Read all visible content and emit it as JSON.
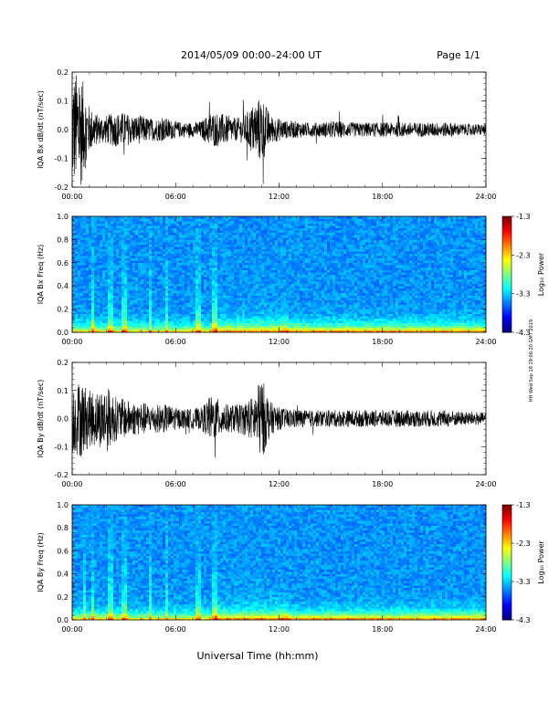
{
  "header": {
    "title": "2014/05/09  00:00–24:00 UT",
    "page": "Page 1/1"
  },
  "footer": {
    "xlabel": "Universal Time (hh:mm)",
    "side_stamp": "HH Wed Sep 18 19:06:20 GMT 2019"
  },
  "colorbar": {
    "label": "Log₁₀ Power",
    "ticks": [
      "-1.3",
      "-2.3",
      "-3.3",
      "-4.3"
    ]
  },
  "chart_data": [
    {
      "type": "line",
      "ylabel": "IQA Bx dB/dt (nT/sec)",
      "xlim": [
        0,
        24
      ],
      "ylim": [
        -0.2,
        0.2
      ],
      "xticks": [
        "00:00",
        "06:00",
        "12:00",
        "18:00",
        "24:00"
      ],
      "yticks": [
        "0.2",
        "0.1",
        "0.0",
        "-0.1",
        "-0.2"
      ],
      "envelope": {
        "hours": [
          0,
          0.5,
          1,
          1.5,
          2,
          2.5,
          3,
          3.5,
          4,
          4.5,
          5,
          5.5,
          6,
          6.5,
          7,
          7.5,
          8,
          8.5,
          9,
          9.5,
          10,
          10.5,
          11,
          11.5,
          12,
          12.5,
          13,
          13.5,
          14,
          14.5,
          15,
          15.5,
          16,
          16.5,
          17,
          17.5,
          18,
          18.5,
          19,
          19.5,
          20,
          20.5,
          21,
          21.5,
          22,
          22.5,
          23,
          23.5,
          24
        ],
        "amplitude": [
          0.2,
          0.2,
          0.08,
          0.05,
          0.05,
          0.06,
          0.06,
          0.05,
          0.05,
          0.04,
          0.04,
          0.04,
          0.03,
          0.025,
          0.025,
          0.03,
          0.06,
          0.06,
          0.05,
          0.04,
          0.05,
          0.09,
          0.12,
          0.05,
          0.04,
          0.03,
          0.03,
          0.025,
          0.025,
          0.025,
          0.03,
          0.03,
          0.025,
          0.025,
          0.025,
          0.025,
          0.025,
          0.025,
          0.025,
          0.025,
          0.025,
          0.025,
          0.025,
          0.025,
          0.025,
          0.02,
          0.02,
          0.02,
          0.02
        ]
      }
    },
    {
      "type": "heatmap",
      "ylabel": "IQA Bx Freq (Hz)",
      "xlim": [
        0,
        24
      ],
      "ylim": [
        0.0,
        1.0
      ],
      "xticks": [
        "00:00",
        "06:00",
        "12:00",
        "18:00",
        "24:00"
      ],
      "yticks": [
        "1.0",
        "0.8",
        "0.6",
        "0.4",
        "0.2",
        "0.0"
      ],
      "zlim": [
        -4.3,
        -1.3
      ],
      "features": {
        "broadband_lines_hours": [
          1.2,
          2.2,
          3.0,
          4.5,
          5.5,
          7.3,
          8.3
        ],
        "strong_event_hours": [
          8.3,
          11.0
        ]
      }
    },
    {
      "type": "line",
      "ylabel": "IQA By dB/dt (nT/sec)",
      "xlim": [
        0,
        24
      ],
      "ylim": [
        -0.2,
        0.2
      ],
      "xticks": [
        "00:00",
        "06:00",
        "12:00",
        "18:00",
        "24:00"
      ],
      "yticks": [
        "0.2",
        "0.1",
        "0.0",
        "-0.1",
        "-0.2"
      ],
      "envelope": {
        "hours": [
          0,
          0.5,
          1,
          1.5,
          2,
          2.5,
          3,
          3.5,
          4,
          4.5,
          5,
          5.5,
          6,
          6.5,
          7,
          7.5,
          8,
          8.5,
          9,
          9.5,
          10,
          10.5,
          11,
          11.5,
          12,
          12.5,
          13,
          13.5,
          14,
          14.5,
          15,
          15.5,
          16,
          16.5,
          17,
          17.5,
          18,
          18.5,
          19,
          19.5,
          20,
          20.5,
          21,
          21.5,
          22,
          22.5,
          23,
          23.5,
          24
        ],
        "amplitude": [
          0.12,
          0.14,
          0.1,
          0.1,
          0.12,
          0.08,
          0.07,
          0.06,
          0.06,
          0.05,
          0.05,
          0.05,
          0.04,
          0.035,
          0.035,
          0.04,
          0.08,
          0.07,
          0.05,
          0.05,
          0.06,
          0.08,
          0.15,
          0.06,
          0.04,
          0.035,
          0.035,
          0.03,
          0.03,
          0.03,
          0.03,
          0.03,
          0.03,
          0.03,
          0.03,
          0.03,
          0.03,
          0.03,
          0.03,
          0.03,
          0.03,
          0.03,
          0.03,
          0.03,
          0.03,
          0.025,
          0.025,
          0.025,
          0.02
        ]
      }
    },
    {
      "type": "heatmap",
      "ylabel": "IQA By Freq (Hz)",
      "xlim": [
        0,
        24
      ],
      "ylim": [
        0.0,
        1.0
      ],
      "xticks": [
        "00:00",
        "06:00",
        "12:00",
        "18:00",
        "24:00"
      ],
      "yticks": [
        "1.0",
        "0.8",
        "0.6",
        "0.4",
        "0.2",
        "0.0"
      ],
      "zlim": [
        -4.3,
        -1.3
      ],
      "features": {
        "broadband_lines_hours": [
          0.7,
          1.2,
          2.2,
          3.0,
          4.5,
          5.5,
          7.3,
          8.3
        ],
        "strong_event_hours": [
          8.3,
          11.0
        ]
      }
    }
  ]
}
